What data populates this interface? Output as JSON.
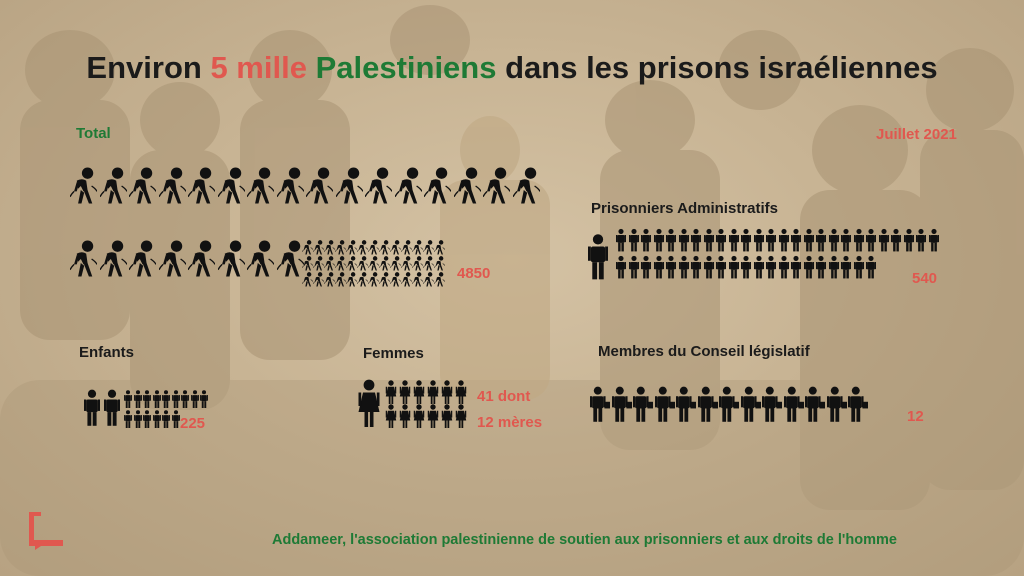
{
  "title": {
    "part1": "Environ ",
    "highlight_number": "5 mille",
    "highlight_word": "Palestiniens",
    "part3": " dans les prisons israéliennes"
  },
  "labels": {
    "total": "Total",
    "date": "Juillet 2021",
    "admin": "Prisonniers Administratifs",
    "children": "Enfants",
    "women": "Femmes",
    "council": "Membres du Conseil législatif"
  },
  "values": {
    "total": "4850",
    "admin": "540",
    "children": "225",
    "women_line1": "41 dont",
    "women_line2": "12 mères",
    "council": "12"
  },
  "footer": {
    "source": "Addameer, l'association palestinienne de soutien aux prisonniers et aux droits de l'homme"
  },
  "colors": {
    "accent_red": "#e0584f",
    "accent_green": "#1e7a35",
    "icon": "#111111"
  },
  "icons": {
    "prisoner": "bound-prisoner-icon",
    "person": "person-icon",
    "woman": "woman-icon",
    "legislator": "legislator-icon"
  }
}
